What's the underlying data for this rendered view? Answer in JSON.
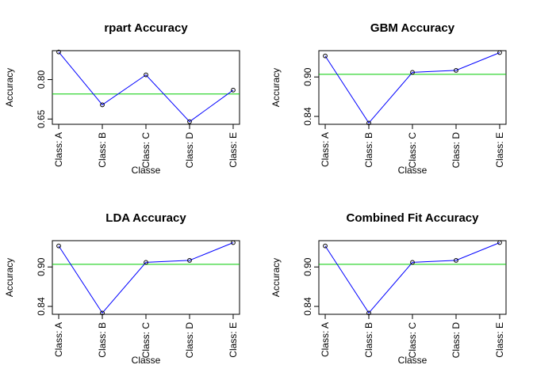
{
  "chart_data": [
    {
      "type": "line",
      "title": "rpart Accuracy",
      "xlabel": "Classe",
      "ylabel": "Accuracy",
      "categories": [
        "Class: A",
        "Class: B",
        "Class: C",
        "Class: D",
        "Class: E"
      ],
      "values": [
        0.905,
        0.704,
        0.818,
        0.64,
        0.76
      ],
      "ylim": [
        0.63,
        0.91
      ],
      "yticks": [
        0.65,
        0.8
      ],
      "ytick_labels": [
        "0.65",
        "0.80"
      ],
      "reference_line": 0.745,
      "colors": {
        "series": "#0000ff",
        "reference": "#00cc00"
      }
    },
    {
      "type": "line",
      "title": "GBM Accuracy",
      "xlabel": "Classe",
      "ylabel": "Accuracy",
      "categories": [
        "Class: A",
        "Class: B",
        "Class: C",
        "Class: D",
        "Class: E"
      ],
      "values": [
        0.932,
        0.83,
        0.907,
        0.91,
        0.937
      ],
      "ylim": [
        0.828,
        0.94
      ],
      "yticks": [
        0.84,
        0.9
      ],
      "ytick_labels": [
        "0.84",
        "0.90"
      ],
      "reference_line": 0.904,
      "colors": {
        "series": "#0000ff",
        "reference": "#00cc00"
      }
    },
    {
      "type": "line",
      "title": "LDA Accuracy",
      "xlabel": "Classe",
      "ylabel": "Accuracy",
      "categories": [
        "Class: A",
        "Class: B",
        "Class: C",
        "Class: D",
        "Class: E"
      ],
      "values": [
        0.932,
        0.83,
        0.907,
        0.91,
        0.937
      ],
      "ylim": [
        0.828,
        0.94
      ],
      "yticks": [
        0.84,
        0.9
      ],
      "ytick_labels": [
        "0.84",
        "0.90"
      ],
      "reference_line": 0.904,
      "colors": {
        "series": "#0000ff",
        "reference": "#00cc00"
      }
    },
    {
      "type": "line",
      "title": "Combined Fit Accuracy",
      "xlabel": "Classe",
      "ylabel": "Accuracy",
      "categories": [
        "Class: A",
        "Class: B",
        "Class: C",
        "Class: D",
        "Class: E"
      ],
      "values": [
        0.932,
        0.83,
        0.907,
        0.91,
        0.937
      ],
      "ylim": [
        0.828,
        0.94
      ],
      "yticks": [
        0.84,
        0.9
      ],
      "ytick_labels": [
        "0.84",
        "0.90"
      ],
      "reference_line": 0.904,
      "colors": {
        "series": "#0000ff",
        "reference": "#00cc00"
      }
    }
  ]
}
